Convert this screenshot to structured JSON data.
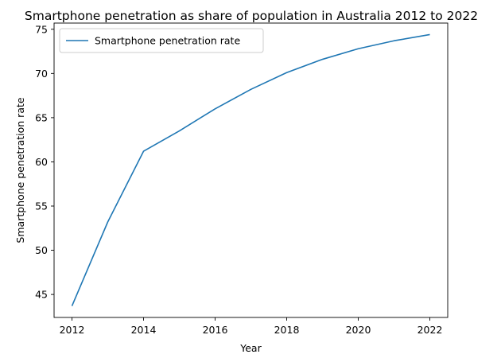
{
  "chart_data": {
    "type": "line",
    "title": "Smartphone penetration as share of population in Australia 2012 to 2022",
    "xlabel": "Year",
    "ylabel": "Smartphone penetration rate",
    "x": [
      2012,
      2013,
      2014,
      2015,
      2016,
      2017,
      2018,
      2019,
      2020,
      2021,
      2022
    ],
    "series": [
      {
        "name": "Smartphone penetration rate",
        "color": "#1f77b4",
        "values": [
          43.7,
          53.2,
          61.2,
          63.5,
          66.0,
          68.2,
          70.1,
          71.6,
          72.8,
          73.7,
          74.4
        ]
      }
    ],
    "xlim": [
      2011.5,
      2022.5
    ],
    "ylim": [
      42.4,
      75.7
    ],
    "xticks": [
      2012,
      2014,
      2016,
      2018,
      2020,
      2022
    ],
    "yticks": [
      45,
      50,
      55,
      60,
      65,
      70,
      75
    ],
    "grid": false,
    "legend": "top-left"
  }
}
